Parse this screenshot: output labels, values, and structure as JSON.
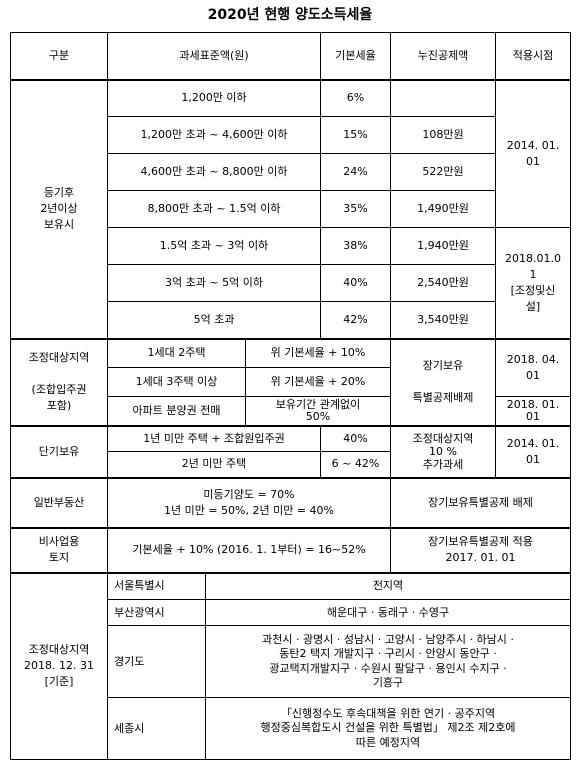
{
  "title": "2020년 현행 양도소득세율",
  "header": [
    "구분",
    "과세표준액(원)",
    "기본세율",
    "누진공제액",
    "적용시점"
  ],
  "registered": {
    "label": "등기후\n2년이상\n보유시",
    "rows": [
      [
        "1,200만 이하",
        "6%"
      ],
      [
        "1,200만 초과 ~ 4,600만 이하",
        "15%",
        "108만원"
      ],
      [
        "4,600만 초과 ~ 8,800만 이하",
        "24%",
        "522만원"
      ],
      [
        "8,800만 초과 ~ 1.5억 이하",
        "35%",
        "1,490만원"
      ],
      [
        "1.5억 초과 ~ 3억 이하",
        "38%",
        "1,940만원"
      ],
      [
        "3억 초과 ~ 5억 이하",
        "40%",
        "2,540만원"
      ],
      [
        "5억 초과",
        "42%",
        "3,540만원"
      ]
    ],
    "dates": [
      "2014. 01.\n01",
      "2018.01.0\n1\n[조정및신\n설]"
    ]
  },
  "adjusted": {
    "label": "조정대상지역\n\n(조합입주권\n포함)",
    "rows": [
      [
        "1세대 2주택",
        "위 기본세율 + 10%"
      ],
      [
        "1세대 3주택 이상",
        "위 기본세율 + 20%"
      ],
      [
        "아파트 분양권 전매",
        "보유기간 관계없이\n50%"
      ]
    ],
    "deduction": "장기보유\n\n특별공제배제",
    "dates": [
      "2018. 04.\n01",
      "2018. 01.\n01"
    ]
  },
  "short": {
    "label": "단기보유",
    "rows": [
      [
        "1년 미만 주택 + 조합원입주권",
        "40%"
      ],
      [
        "2년 미만 주택",
        "6 ~ 42%"
      ]
    ],
    "note": "조정대상지역\n10 %\n추가과세",
    "date": "2014. 01.\n01"
  },
  "general": {
    "label": "일반부동산",
    "text": "미등기양도 = 70%\n1년 미만 = 50%, 2년 미만 = 40%",
    "note": "장기보유특별공제 배제"
  },
  "land": {
    "label": "비사업용\n토지",
    "text": "기본세율 + 10% (2016. 1. 1부터) = 16~52%",
    "note": "장기보유특별공제 적용\n2017. 01. 01"
  },
  "regions": {
    "label": "조정대상지역\n2018. 12. 31\n[기준]",
    "rows": [
      [
        "서울특별시",
        "전지역"
      ],
      [
        "부산광역시",
        "해운대구 · 동래구 · 수영구"
      ],
      [
        "경기도",
        "과천시 · 광명시 · 성남시 · 고양시 · 남양주시 · 하남시 ·\n동탄2 택지 개발지구 · 구리시 · 안양시 동안구 ·\n광교택지개발지구 · 수원시 팔달구 · 용인시 수지구 ·\n기흥구"
      ],
      [
        "세종시",
        "「신행정수도 후속대책을 위한 연기 · 공주지역\n행정중심복합도시 건설을 위한 특별법」 제2조 제2호에\n따른 예정지역"
      ]
    ]
  }
}
